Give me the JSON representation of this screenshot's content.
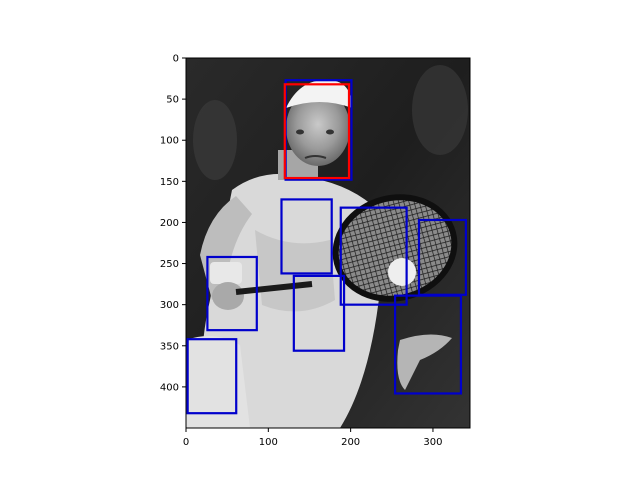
{
  "chart_data": {
    "type": "image-with-bounding-boxes",
    "image": {
      "description_name": "grayscale tennis player photo",
      "width": 345,
      "height": 450
    },
    "axes": {
      "xlim": [
        0,
        345
      ],
      "ylim": [
        450,
        0
      ],
      "xticks": [
        0,
        100,
        200,
        300
      ],
      "yticks": [
        0,
        50,
        100,
        150,
        200,
        250,
        300,
        350,
        400
      ],
      "grid": false,
      "xlabel": "",
      "ylabel": "",
      "title": ""
    },
    "colors": {
      "ground_truth": "#ff0000",
      "prediction": "#0000cc"
    },
    "red_boxes": [
      {
        "x0": 120,
        "y0": 32,
        "x1": 198,
        "y1": 146
      }
    ],
    "blue_boxes": [
      {
        "x0": 121,
        "y0": 27,
        "x1": 201,
        "y1": 148
      },
      {
        "x0": 116,
        "y0": 172,
        "x1": 177,
        "y1": 262
      },
      {
        "x0": 188,
        "y0": 182,
        "x1": 268,
        "y1": 300
      },
      {
        "x0": 283,
        "y0": 197,
        "x1": 340,
        "y1": 288
      },
      {
        "x0": 26,
        "y0": 242,
        "x1": 86,
        "y1": 331
      },
      {
        "x0": 131,
        "y0": 265,
        "x1": 192,
        "y1": 356
      },
      {
        "x0": 254,
        "y0": 289,
        "x1": 334,
        "y1": 408
      },
      {
        "x0": 2,
        "y0": 342,
        "x1": 61,
        "y1": 432
      }
    ]
  }
}
